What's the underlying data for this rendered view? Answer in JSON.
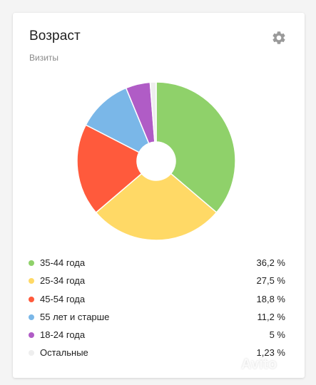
{
  "widget": {
    "title": "Возраст",
    "subtitle": "Визиты",
    "settings_icon": "gear-icon"
  },
  "colors": {
    "accent_gear": "#9a9a9a",
    "text": "#1f1f1f",
    "muted": "#8a8a8a"
  },
  "chart_data": {
    "type": "pie",
    "title": "Возраст",
    "subtitle": "Визиты",
    "donut": true,
    "legend_position": "bottom",
    "slices": [
      {
        "label": "35-44 года",
        "value": 36.2,
        "display": "36,2 %",
        "color": "#8fd16a"
      },
      {
        "label": "25-34 года",
        "value": 27.5,
        "display": "27,5 %",
        "color": "#ffd966"
      },
      {
        "label": "45-54 года",
        "value": 18.8,
        "display": "18,8 %",
        "color": "#ff5a3c"
      },
      {
        "label": "55 лет и старше",
        "value": 11.2,
        "display": "11,2 %",
        "color": "#7ab7e8"
      },
      {
        "label": "18-24 года",
        "value": 5,
        "display": "5 %",
        "color": "#b05cc6"
      },
      {
        "label": "Остальные",
        "value": 1.23,
        "display": "1,23 %",
        "color": "#eeeeee"
      }
    ]
  },
  "watermark": "Avito"
}
